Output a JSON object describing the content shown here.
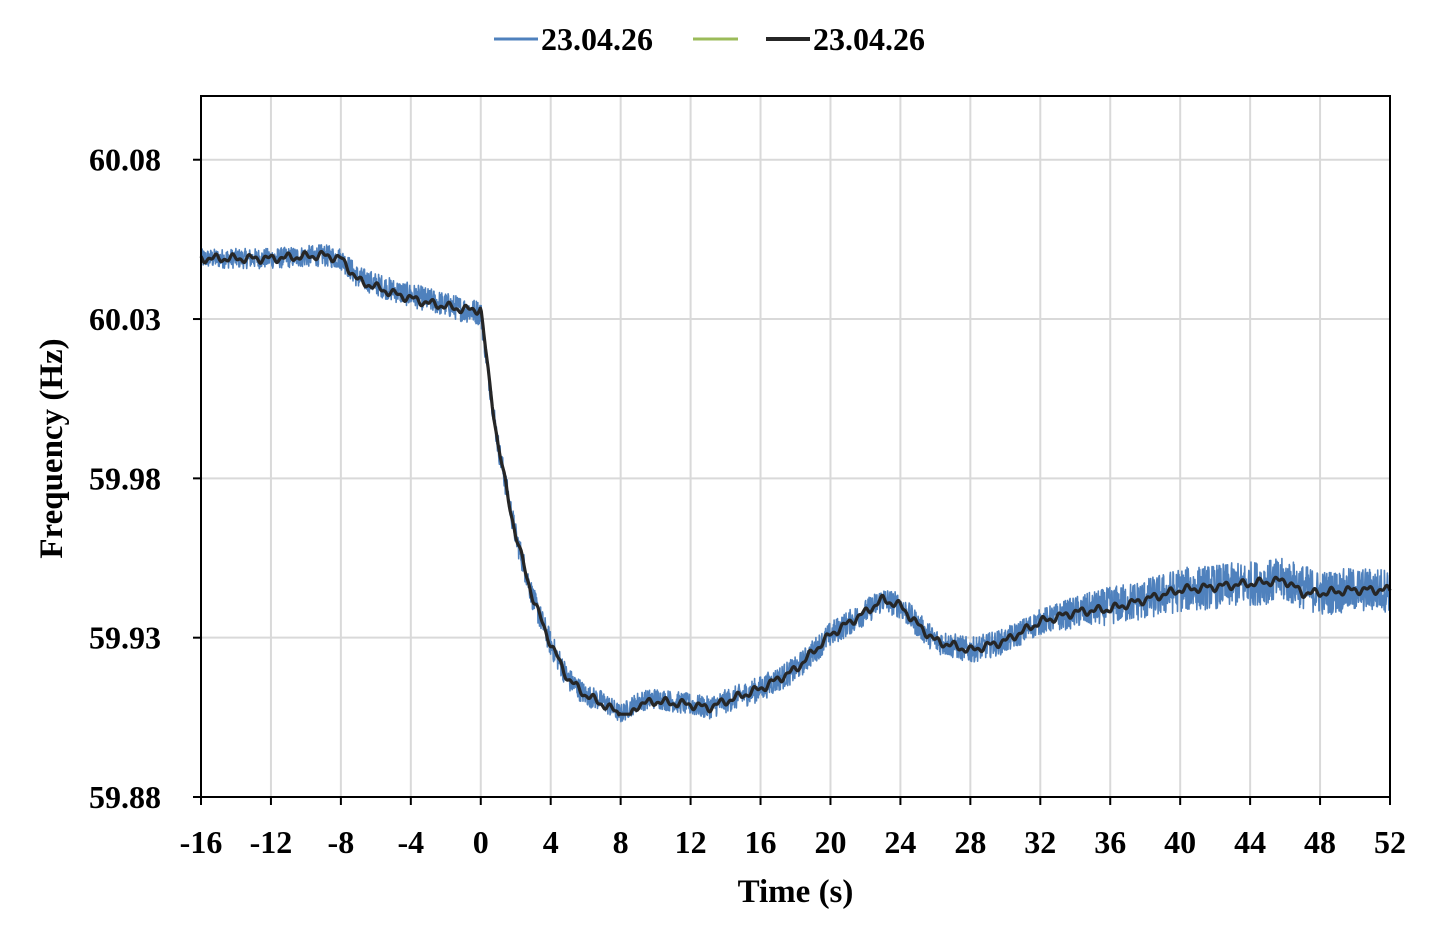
{
  "chart_data": {
    "type": "line",
    "title": "",
    "xlabel": "Time (s)",
    "ylabel": "Frequency (Hz)",
    "xlim": [
      -16,
      52
    ],
    "ylim": [
      59.88,
      60.1
    ],
    "xticks": [
      -16,
      -12,
      -8,
      -4,
      0,
      4,
      8,
      12,
      16,
      20,
      24,
      28,
      32,
      36,
      40,
      44,
      48,
      52
    ],
    "xtick_labels": [
      "-16",
      "-12",
      "-8",
      "-4",
      "0",
      "4",
      "8",
      "12",
      "16",
      "20",
      "24",
      "28",
      "32",
      "36",
      "40",
      "44",
      "48",
      "52"
    ],
    "yticks": [
      59.88,
      59.93,
      59.98,
      60.03,
      60.08
    ],
    "ytick_labels": [
      "59.88",
      "59.93",
      "59.98",
      "60.03",
      "60.08"
    ],
    "grid": true,
    "legend_position": "top-center",
    "series": [
      {
        "name": "23.04.26",
        "color": "#4f81bd",
        "style": "noisy measurement",
        "noise_amplitude_hz": [
          [
            -16,
            0.003
          ],
          [
            0,
            0.004
          ],
          [
            4,
            0.004
          ],
          [
            8,
            0.003
          ],
          [
            16,
            0.004
          ],
          [
            24,
            0.004
          ],
          [
            32,
            0.004
          ],
          [
            36,
            0.006
          ],
          [
            40,
            0.007
          ],
          [
            52,
            0.007
          ]
        ],
        "x": [
          -16,
          -12,
          -9,
          -8,
          -7,
          -5,
          -3,
          -1,
          0,
          0.5,
          1,
          2,
          3,
          4,
          5,
          6,
          7,
          8,
          9,
          10,
          12,
          13,
          14,
          16,
          18,
          20,
          22,
          23,
          24,
          25,
          26,
          28,
          30,
          32,
          34,
          36,
          38,
          40,
          42,
          44,
          46,
          48,
          50,
          52
        ],
        "values": [
          60.049,
          60.049,
          60.05,
          60.049,
          60.043,
          60.039,
          60.036,
          60.033,
          60.032,
          60.01,
          59.99,
          59.962,
          59.942,
          59.928,
          59.917,
          59.912,
          59.91,
          59.906,
          59.91,
          59.911,
          59.909,
          59.908,
          59.91,
          59.914,
          59.92,
          59.931,
          59.938,
          59.942,
          59.94,
          59.934,
          59.929,
          59.926,
          59.929,
          59.935,
          59.938,
          59.94,
          59.942,
          59.945,
          59.946,
          59.947,
          59.948,
          59.944,
          59.945,
          59.945
        ]
      },
      {
        "name": "",
        "color": "#9bbb59",
        "x": [],
        "values": []
      },
      {
        "name": "23.04.26",
        "color": "#262626",
        "style": "filtered",
        "x": [
          -16,
          -12,
          -9,
          -8,
          -7,
          -5,
          -3,
          -1,
          0,
          0.5,
          1,
          2,
          3,
          4,
          5,
          6,
          7,
          8,
          8.4,
          8.6,
          9,
          10,
          12,
          13,
          14,
          16,
          18,
          20,
          22,
          23,
          24,
          25,
          26,
          28,
          30,
          32,
          34,
          36,
          38,
          40,
          42,
          44,
          46,
          47,
          48,
          50,
          52
        ],
        "values": [
          60.049,
          60.049,
          60.05,
          60.049,
          60.042,
          60.038,
          60.035,
          60.033,
          60.033,
          60.01,
          59.99,
          59.962,
          59.942,
          59.928,
          59.917,
          59.912,
          59.909,
          59.906,
          59.906,
          59.906,
          59.909,
          59.91,
          59.909,
          59.908,
          59.91,
          59.914,
          59.92,
          59.931,
          59.938,
          59.942,
          59.94,
          59.934,
          59.929,
          59.926,
          59.929,
          59.935,
          59.938,
          59.939,
          59.942,
          59.945,
          59.946,
          59.947,
          59.948,
          59.944,
          59.944,
          59.945,
          59.945
        ]
      }
    ]
  }
}
